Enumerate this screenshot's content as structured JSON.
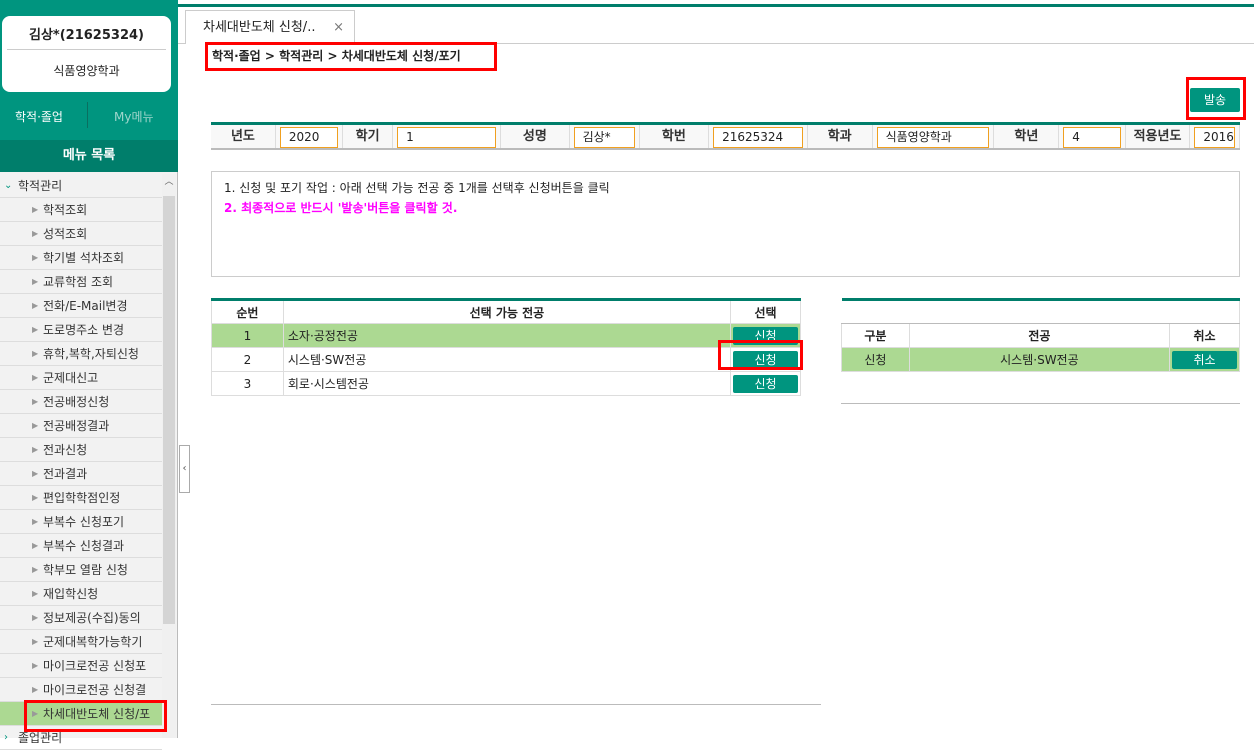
{
  "user": {
    "name": "김상*(21625324)",
    "dept": "식품영양학과"
  },
  "topnav": [
    "학적·졸업",
    "My메뉴"
  ],
  "menu_title": "메뉴 목록",
  "tree": {
    "group": "학적관리",
    "items": [
      "학적조회",
      "성적조회",
      "학기별 석차조회",
      "교류학점 조회",
      "전화/E-Mail변경",
      "도로명주소 변경",
      "휴학,복학,자퇴신청",
      "군제대신고",
      "전공배정신청",
      "전공배정결과",
      "전과신청",
      "전과결과",
      "편입학학점인정",
      "부복수 신청포기",
      "부복수 신청결과",
      "학부모 열람 신청",
      "재입학신청",
      "정보제공(수집)동의",
      "군제대복학가능학기",
      "마이크로전공 신청포",
      "마이크로전공 신청결",
      "차세대반도체 신청/포"
    ],
    "selected": "차세대반도체 신청/포",
    "next_group": "졸업관리"
  },
  "tab": {
    "label": "차세대반도체 신청/..",
    "close": "×"
  },
  "breadcrumb": "학적·졸업 > 학적관리 > 차세대반도체 신청/포기",
  "send_button": "발송",
  "info": [
    {
      "label": "년도",
      "value": "2020"
    },
    {
      "label": "학기",
      "value": "1"
    },
    {
      "label": "성명",
      "value": "김상*"
    },
    {
      "label": "학번",
      "value": "21625324"
    },
    {
      "label": "학과",
      "value": "식품영양학과"
    },
    {
      "label": "학년",
      "value": "4"
    },
    {
      "label": "적용년도",
      "value": "2016"
    }
  ],
  "notice": [
    "1. 신청 및 포기 작업 : 아래 선택 가능 전공 중 1개를 선택후 신청버튼을 클릭",
    "2. 최종적으로 반드시 '발송'버튼을 클릭할 것."
  ],
  "available": {
    "headers": [
      "순번",
      "선택 가능 전공",
      "선택"
    ],
    "rows": [
      {
        "no": "1",
        "major": "소자·공정전공",
        "btn": "신청"
      },
      {
        "no": "2",
        "major": "시스템·SW전공",
        "btn": "신청"
      },
      {
        "no": "3",
        "major": "회로·시스템전공",
        "btn": "신청"
      }
    ]
  },
  "applied": {
    "headers": [
      "구분",
      "전공",
      "취소"
    ],
    "rows": [
      {
        "type": "신청",
        "major": "시스템·SW전공",
        "btn": "취소"
      }
    ]
  },
  "colors": {
    "accent": "#00957f",
    "dark": "#007e6b",
    "highlight": "#acd992",
    "notice": "#ff00ff"
  }
}
